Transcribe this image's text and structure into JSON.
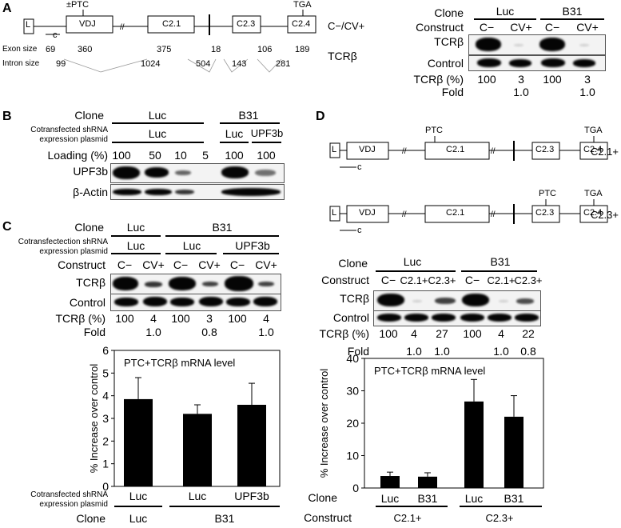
{
  "panel_labels": {
    "A": "A",
    "B": "B",
    "C": "C",
    "D": "D"
  },
  "panel_a": {
    "ptc_label": "±PTC",
    "tga_label": "TGA",
    "c_label": "c",
    "exons": [
      "L",
      "VDJ",
      "C2.1",
      "C2.3",
      "C2.4"
    ],
    "construct_label": "C−/CV+",
    "exon_size_label": "Exon size",
    "exon_sizes": [
      "69",
      "360",
      "375",
      "18",
      "106",
      "189"
    ],
    "intron_size_label": "Intron size",
    "intron_sizes": [
      "99",
      "1024",
      "504",
      "143",
      "281"
    ],
    "gene_label": "TCRβ",
    "blot": {
      "clone_label": "Clone",
      "construct_label": "Construct",
      "clones": [
        "Luc",
        "B31"
      ],
      "constructs": [
        "C−",
        "CV+",
        "C−",
        "CV+"
      ],
      "rows": [
        "TCRβ",
        "Control"
      ],
      "pct_label": "TCRβ (%)",
      "pct_values": [
        "100",
        "3",
        "100",
        "3"
      ],
      "fold_label": "Fold",
      "fold_values": [
        "1.0",
        "1.0"
      ]
    }
  },
  "panel_b": {
    "clone_label": "Clone",
    "clones": [
      "Luc",
      "B31"
    ],
    "shrna_label_1": "Cotransfected shRNA",
    "shrna_label_2": "expression plasmid",
    "shrna": [
      "Luc",
      "Luc",
      "UPF3b"
    ],
    "loading_label": "Loading (%)",
    "loading": [
      "100",
      "50",
      "10",
      "5",
      "100",
      "100"
    ],
    "rows": [
      "UPF3b",
      "β-Actin"
    ]
  },
  "panel_c": {
    "clone_label": "Clone",
    "clones": [
      "Luc",
      "B31"
    ],
    "shrna_label_1": "Cotransfectection shRNA",
    "shrna_label_2": "expression plasmid",
    "shrna": [
      "Luc",
      "Luc",
      "UPF3b"
    ],
    "construct_label": "Construct",
    "constructs": [
      "C−",
      "CV+",
      "C−",
      "CV+",
      "C−",
      "CV+"
    ],
    "rows": [
      "TCRβ",
      "Control"
    ],
    "pct_label": "TCRβ  (%)",
    "pct_values": [
      "100",
      "4",
      "100",
      "3",
      "100",
      "4"
    ],
    "fold_label": "Fold",
    "fold_values": [
      "1.0",
      "0.8",
      "1.0"
    ],
    "bottom_shrna_1": "Cotransfected shRNA",
    "bottom_shrna_2": "expression plasmid",
    "bottom_clone_label": "Clone",
    "bottom_clones": [
      "Luc",
      "B31"
    ]
  },
  "panel_d": {
    "c_label": "c",
    "ptc_label": "PTC",
    "tga_label": "TGA",
    "exons": [
      "L",
      "VDJ",
      "C2.1",
      "C2.3",
      "C2.4"
    ],
    "construct_labels": [
      "C2.1+",
      "C2.3+"
    ],
    "blot": {
      "clone_label": "Clone",
      "construct_label": "Construct",
      "clones": [
        "Luc",
        "B31"
      ],
      "constructs": [
        "C−",
        "C2.1+",
        "C2.3+",
        "C−",
        "C2.1+",
        "C2.3+"
      ],
      "rows": [
        "TCRβ",
        "Control"
      ],
      "pct_label": "TCRβ (%)",
      "pct_values": [
        "100",
        "4",
        "27",
        "100",
        "4",
        "22"
      ],
      "fold_label": "Fold",
      "fold_values": [
        "1.0",
        "1.0",
        "1.0",
        "0.8"
      ]
    },
    "bottom_clone_label": "Clone",
    "bottom_construct_label": "Construct",
    "bottom_constructs": [
      "C2.1+",
      "C2.3+"
    ]
  },
  "chart_data": [
    {
      "type": "bar",
      "title": "PTC+TCRβ mRNA level",
      "ylabel": "% Increase over control",
      "categories": [
        "Luc",
        "Luc",
        "UPF3b"
      ],
      "values": [
        3.85,
        3.2,
        3.6
      ],
      "errors": [
        0.95,
        0.4,
        0.95
      ],
      "ylim": [
        0,
        6
      ],
      "yticks": [
        "0",
        "1",
        "2",
        "3",
        "4",
        "5",
        "6"
      ],
      "bar_color": "#000000"
    },
    {
      "type": "bar",
      "title": "PTC+TCRβ mRNA level",
      "ylabel": "% Increase over control",
      "categories": [
        "Luc",
        "B31",
        "Luc",
        "B31"
      ],
      "values": [
        3.7,
        3.5,
        26.7,
        22.0
      ],
      "errors": [
        1.2,
        1.2,
        6.8,
        6.5
      ],
      "ylim": [
        0,
        40
      ],
      "yticks": [
        "0",
        "10",
        "20",
        "30",
        "40"
      ],
      "bar_color": "#000000"
    }
  ]
}
